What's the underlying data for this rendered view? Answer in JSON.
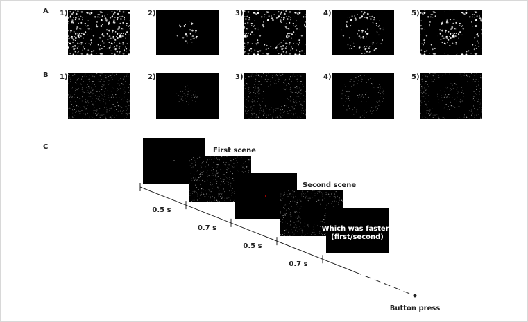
{
  "panel_a": {
    "label": "A",
    "items": [
      "1)",
      "2)",
      "3)",
      "4)",
      "5)"
    ]
  },
  "panel_b": {
    "label": "B",
    "items": [
      "1)",
      "2)",
      "3)",
      "4)",
      "5)"
    ]
  },
  "panel_c": {
    "label": "C",
    "first_scene": "First scene",
    "second_scene": "Second scene",
    "intervals": [
      "0.5 s",
      "0.7 s",
      "0.5 s",
      "0.7 s"
    ],
    "prompt": [
      "Which was faster?",
      "(first/second)"
    ],
    "end": "Button press"
  }
}
